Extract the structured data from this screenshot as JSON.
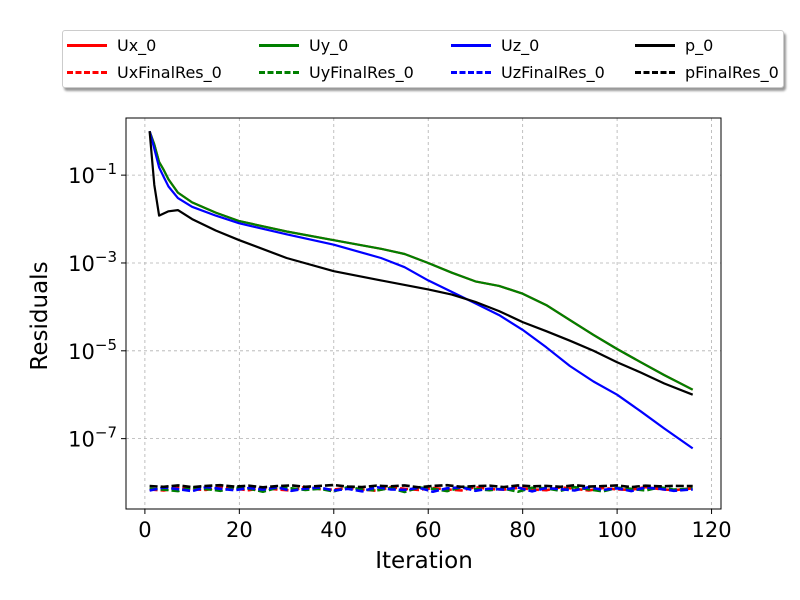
{
  "chart_data": {
    "type": "line",
    "xlabel": "Iteration",
    "ylabel": "Residuals",
    "xlim": [
      -4,
      122
    ],
    "ylim": [
      2.5e-09,
      2.0
    ],
    "yscale": "log",
    "xticks": [
      0,
      20,
      40,
      60,
      80,
      100,
      120
    ],
    "yticks": [
      {
        "value": 0.1,
        "base": "10",
        "exp": "−1"
      },
      {
        "value": 0.001,
        "base": "10",
        "exp": "−3"
      },
      {
        "value": 1e-05,
        "base": "10",
        "exp": "−5"
      },
      {
        "value": 1e-07,
        "base": "10",
        "exp": "−7"
      }
    ],
    "grid": true,
    "legend_position": "top",
    "series": [
      {
        "name": "Ux_0",
        "color": "#ff0000",
        "style": "solid",
        "x": [
          1,
          2,
          3,
          4,
          5,
          7,
          10,
          15,
          20,
          30,
          40,
          50,
          55,
          60,
          65,
          70,
          75,
          80,
          85,
          90,
          95,
          100,
          105,
          110,
          116
        ],
        "y": [
          1.0,
          0.5,
          0.2,
          0.13,
          0.08,
          0.04,
          0.024,
          0.014,
          0.009,
          0.0052,
          0.0033,
          0.0021,
          0.0016,
          0.001,
          0.0006,
          0.00038,
          0.0003,
          0.0002,
          0.00011,
          5e-05,
          2.3e-05,
          1.1e-05,
          5.5e-06,
          2.8e-06,
          1.3e-06
        ]
      },
      {
        "name": "Uy_0",
        "color": "#008000",
        "style": "solid",
        "x": [
          1,
          2,
          3,
          4,
          5,
          7,
          10,
          15,
          20,
          30,
          40,
          50,
          55,
          60,
          65,
          70,
          75,
          80,
          85,
          90,
          95,
          100,
          105,
          110,
          116
        ],
        "y": [
          1.0,
          0.5,
          0.2,
          0.13,
          0.08,
          0.04,
          0.024,
          0.014,
          0.009,
          0.0052,
          0.0033,
          0.0021,
          0.0016,
          0.001,
          0.0006,
          0.00038,
          0.0003,
          0.0002,
          0.00011,
          5e-05,
          2.3e-05,
          1.1e-05,
          5.5e-06,
          2.8e-06,
          1.3e-06
        ]
      },
      {
        "name": "Uz_0",
        "color": "#0000ff",
        "style": "solid",
        "x": [
          1,
          2,
          3,
          4,
          5,
          7,
          10,
          15,
          20,
          30,
          40,
          50,
          55,
          60,
          65,
          70,
          75,
          80,
          85,
          90,
          95,
          100,
          105,
          110,
          116
        ],
        "y": [
          1.0,
          0.4,
          0.15,
          0.09,
          0.055,
          0.03,
          0.019,
          0.012,
          0.008,
          0.0045,
          0.0026,
          0.0013,
          0.0008,
          0.0004,
          0.00022,
          0.00012,
          6.5e-05,
          3e-05,
          1.2e-05,
          4.5e-06,
          2e-06,
          1e-06,
          4.2e-07,
          1.7e-07,
          6e-08
        ]
      },
      {
        "name": "p_0",
        "color": "#000000",
        "style": "solid",
        "x": [
          1,
          2,
          3,
          5,
          7,
          10,
          15,
          20,
          30,
          40,
          50,
          60,
          65,
          70,
          75,
          80,
          85,
          90,
          95,
          100,
          105,
          110,
          116
        ],
        "y": [
          1.0,
          0.06,
          0.012,
          0.015,
          0.016,
          0.01,
          0.0055,
          0.0033,
          0.0013,
          0.00065,
          0.0004,
          0.00025,
          0.00019,
          0.00013,
          8e-05,
          4.5e-05,
          2.8e-05,
          1.7e-05,
          1e-05,
          5.5e-06,
          3.2e-06,
          1.8e-06,
          1e-06
        ]
      },
      {
        "name": "UxFinalRes_0",
        "color": "#ff0000",
        "style": "dashed",
        "x": [
          1,
          4,
          7,
          10,
          13,
          16,
          19,
          22,
          25,
          28,
          31,
          34,
          37,
          40,
          43,
          46,
          49,
          52,
          55,
          58,
          61,
          64,
          67,
          70,
          73,
          76,
          79,
          82,
          85,
          88,
          91,
          94,
          97,
          100,
          103,
          106,
          109,
          112,
          116
        ],
        "y": [
          7e-09,
          6.6e-09,
          7.6e-09,
          7e-09,
          6.8e-09,
          7.9e-09,
          7.2e-09,
          6.7e-09,
          7.5e-09,
          7e-09,
          6.6e-09,
          8e-09,
          7.1e-09,
          6.9e-09,
          7.6e-09,
          7e-09,
          6.5e-09,
          7.8e-09,
          7.2e-09,
          6.8e-09,
          7.5e-09,
          7e-09,
          6.6e-09,
          7.9e-09,
          7.1e-09,
          6.9e-09,
          7.6e-09,
          7e-09,
          6.7e-09,
          7.8e-09,
          7.2e-09,
          6.6e-09,
          7.5e-09,
          7e-09,
          6.8e-09,
          7.9e-09,
          7.1e-09,
          6.7e-09,
          7.4e-09
        ]
      },
      {
        "name": "UyFinalRes_0",
        "color": "#008000",
        "style": "dashed",
        "x": [
          1,
          4,
          7,
          10,
          13,
          16,
          19,
          22,
          25,
          28,
          31,
          34,
          37,
          40,
          43,
          46,
          49,
          52,
          55,
          58,
          61,
          64,
          67,
          70,
          73,
          76,
          79,
          82,
          85,
          88,
          91,
          94,
          97,
          100,
          103,
          106,
          109,
          112,
          116
        ],
        "y": [
          7.2e-09,
          6.9e-09,
          6.4e-09,
          7.8e-09,
          7.1e-09,
          6.5e-09,
          7.7e-09,
          7.3e-09,
          6.2e-09,
          7.6e-09,
          7.4e-09,
          6.8e-09,
          7.2e-09,
          6.3e-09,
          7.9e-09,
          7e-09,
          6.6e-09,
          7.5e-09,
          6.1e-09,
          7.7e-09,
          7.2e-09,
          6.4e-09,
          7.8e-09,
          7.1e-09,
          6.7e-09,
          7.3e-09,
          6.2e-09,
          7.6e-09,
          7.4e-09,
          6.5e-09,
          7.9e-09,
          7e-09,
          6.3e-09,
          7.6e-09,
          7.2e-09,
          6.6e-09,
          7.8e-09,
          6.9e-09,
          7.3e-09
        ]
      },
      {
        "name": "UzFinalRes_0",
        "color": "#0000ff",
        "style": "dashed",
        "x": [
          1,
          4,
          7,
          10,
          13,
          16,
          19,
          22,
          25,
          28,
          31,
          34,
          37,
          40,
          43,
          46,
          49,
          52,
          55,
          58,
          61,
          64,
          67,
          70,
          73,
          76,
          79,
          82,
          85,
          88,
          91,
          94,
          97,
          100,
          103,
          106,
          109,
          112,
          116
        ],
        "y": [
          6.6e-09,
          7.7e-09,
          7.1e-09,
          6.4e-09,
          7.9e-09,
          7.2e-09,
          6.7e-09,
          7.5e-09,
          6.9e-09,
          7.8e-09,
          6.5e-09,
          7.3e-09,
          7.7e-09,
          6.6e-09,
          7.2e-09,
          6.3e-09,
          7.9e-09,
          7e-09,
          6.8e-09,
          7.6e-09,
          6.2e-09,
          7.4e-09,
          7.8e-09,
          6.5e-09,
          7.3e-09,
          6.9e-09,
          7.7e-09,
          6.3e-09,
          7.5e-09,
          7.1e-09,
          6.6e-09,
          7.9e-09,
          6.8e-09,
          7.4e-09,
          6.4e-09,
          7.7e-09,
          7.2e-09,
          6.5e-09,
          7e-09
        ]
      },
      {
        "name": "pFinalRes_0",
        "color": "#000000",
        "style": "dashed",
        "x": [
          1,
          4,
          7,
          10,
          13,
          16,
          19,
          22,
          25,
          28,
          31,
          34,
          37,
          40,
          43,
          46,
          49,
          52,
          55,
          58,
          61,
          64,
          67,
          70,
          73,
          76,
          79,
          82,
          85,
          88,
          91,
          94,
          97,
          100,
          103,
          106,
          109,
          112,
          116
        ],
        "y": [
          8.3e-09,
          8e-09,
          8.6e-09,
          7.9e-09,
          8.4e-09,
          8.7e-09,
          8.1e-09,
          8.5e-09,
          7.8e-09,
          8.3e-09,
          8.6e-09,
          8e-09,
          8.4e-09,
          8.8e-09,
          8.1e-09,
          7.9e-09,
          8.5e-09,
          8.2e-09,
          8.6e-09,
          7.8e-09,
          8.4e-09,
          8.7e-09,
          8e-09,
          8.3e-09,
          8.5e-09,
          7.9e-09,
          8.6e-09,
          8.2e-09,
          8.4e-09,
          8e-09,
          8.7e-09,
          8.1e-09,
          8.3e-09,
          8.6e-09,
          7.9e-09,
          8.5e-09,
          8.2e-09,
          8.4e-09,
          8.3e-09
        ]
      }
    ]
  }
}
